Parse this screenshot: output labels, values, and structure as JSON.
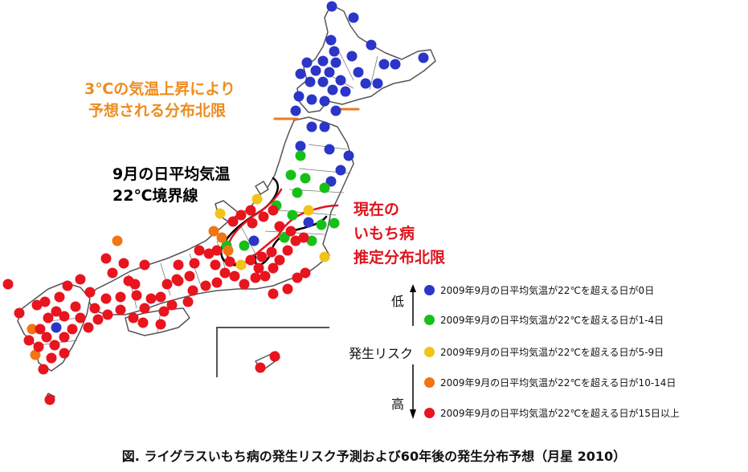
{
  "callouts": {
    "future_limit": [
      "3℃の気温上昇により",
      "予想される分布北限"
    ],
    "isotherm": [
      "9月の日平均気温",
      "22℃境界線"
    ],
    "current_limit": [
      "現在の",
      "いもち病",
      "推定分布北限"
    ]
  },
  "colors": {
    "blue": "#2B35C8",
    "green": "#16C016",
    "yellow": "#F2C318",
    "orange": "#F27415",
    "red": "#E8141E",
    "future_line": "#F07820",
    "current_line": "#E0141E",
    "isotherm_line": "#000000",
    "land": "#FFFFFF",
    "land_stroke": "#555555"
  },
  "legend": {
    "low": "低",
    "title": "発生リスク",
    "high": "高",
    "items": [
      {
        "color": "blue",
        "label": "2009年9月の日平均気温が22℃を超える日が0日"
      },
      {
        "color": "green",
        "label": "2009年9月の日平均気温が22℃を超える日が1-4日"
      },
      {
        "color": "yellow",
        "label": "2009年9月の日平均気温が22℃を超える日が5-9日"
      },
      {
        "color": "orange",
        "label": "2009年9月の日平均気温が22℃を超える日が10-14日"
      },
      {
        "color": "red",
        "label": "2009年9月の日平均気温が22℃を超える日が15日以上"
      }
    ]
  },
  "caption": "図. ライグラスいもち病の発生リスク予測および60年後の発生分布予想（月星 2010）"
}
